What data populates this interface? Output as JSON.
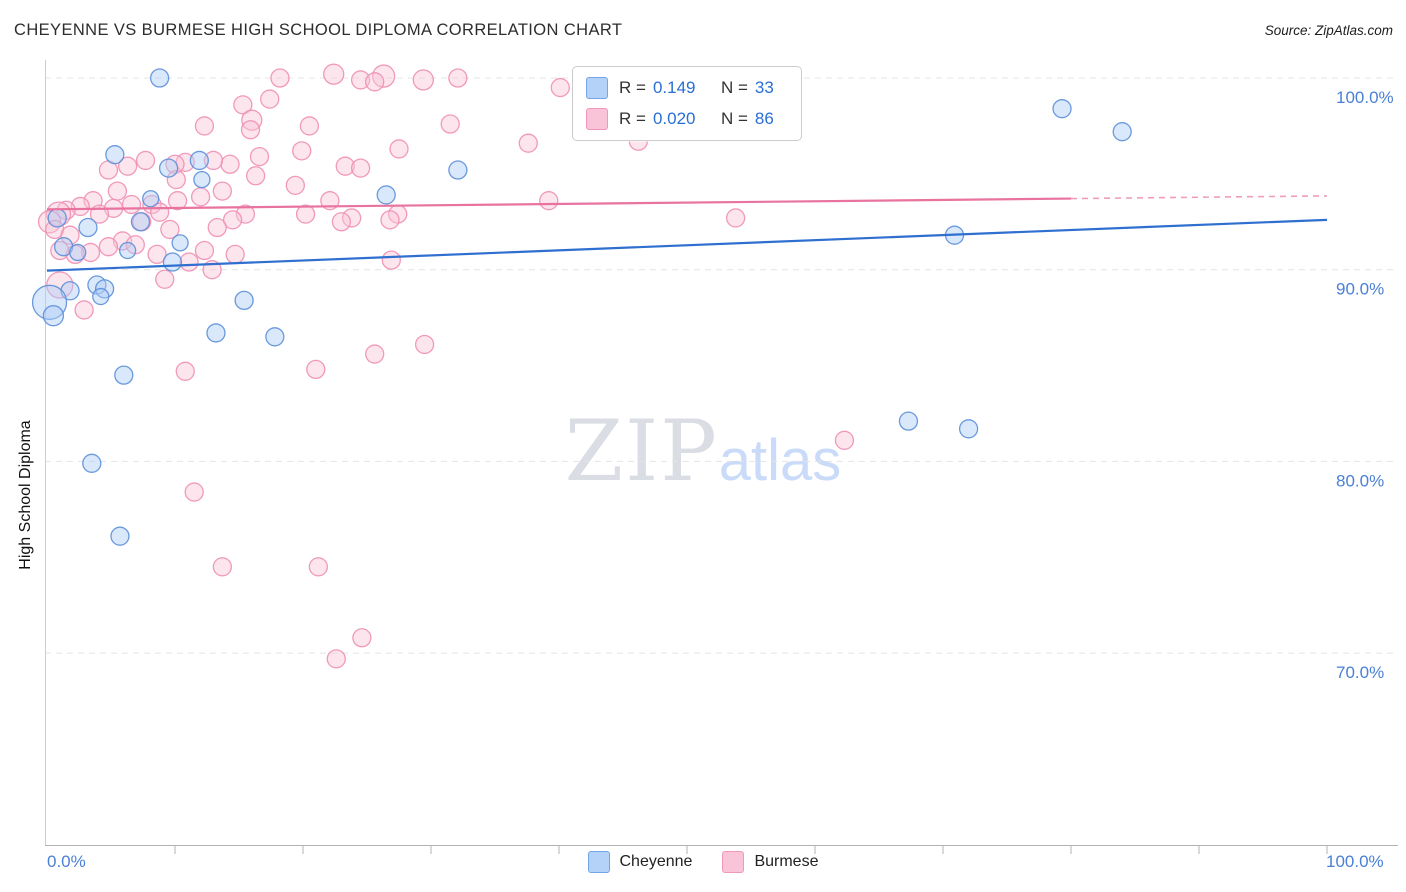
{
  "header": {
    "title": "CHEYENNE VS BURMESE HIGH SCHOOL DIPLOMA CORRELATION CHART",
    "source": "Source: ZipAtlas.com"
  },
  "axes": {
    "ylabel": "High School Diploma",
    "x_left_label": "0.0%",
    "x_right_label": "100.0%"
  },
  "legend_box": {
    "rows": [
      {
        "r_label": "R =",
        "r_value": "0.149",
        "n_label": "N =",
        "n_value": "33"
      },
      {
        "r_label": "R =",
        "r_value": "0.020",
        "n_label": "N =",
        "n_value": "86"
      }
    ]
  },
  "bottom_legend": {
    "items": [
      {
        "label": "Cheyenne"
      },
      {
        "label": "Burmese"
      }
    ]
  },
  "watermark": {
    "part1": "ZIP",
    "part2": "atlas"
  },
  "chart_data": {
    "type": "scatter",
    "title": "CHEYENNE VS BURMESE HIGH SCHOOL DIPLOMA CORRELATION CHART",
    "xlabel": "",
    "ylabel": "High School Diploma",
    "xlim": [
      0,
      100
    ],
    "ylim": [
      60,
      101.5
    ],
    "grid": "dashed-horizontal",
    "legend_position": "top-center",
    "yticks": [
      {
        "value": 100,
        "label": "100.0%"
      },
      {
        "value": 90,
        "label": "90.0%"
      },
      {
        "value": 80,
        "label": "80.0%"
      },
      {
        "value": 70,
        "label": "70.0%"
      }
    ],
    "series": [
      {
        "name": "Cheyenne",
        "R": 0.149,
        "N": 33,
        "fill": "#aecdf6",
        "edge": "#5b8fd9",
        "line": "#2f6fd0",
        "trend": {
          "x1": 0,
          "y1": 89.95,
          "x2": 100,
          "y2": 92.6,
          "solid_to": 100
        },
        "points": [
          [
            8.8,
            100.0,
            9
          ],
          [
            5.3,
            96.0,
            9
          ],
          [
            79.3,
            98.4,
            9
          ],
          [
            84.0,
            97.2,
            9
          ],
          [
            32.1,
            95.2,
            9
          ],
          [
            9.5,
            95.3,
            9
          ],
          [
            11.9,
            95.7,
            9
          ],
          [
            26.5,
            93.9,
            9
          ],
          [
            0.8,
            92.7,
            9
          ],
          [
            3.2,
            92.2,
            9
          ],
          [
            7.3,
            92.5,
            9
          ],
          [
            70.9,
            91.8,
            9
          ],
          [
            1.3,
            91.2,
            9
          ],
          [
            9.8,
            90.4,
            9
          ],
          [
            1.8,
            88.9,
            9
          ],
          [
            3.9,
            89.2,
            9
          ],
          [
            4.5,
            89.0,
            9
          ],
          [
            15.4,
            88.4,
            9
          ],
          [
            13.2,
            86.7,
            9
          ],
          [
            17.8,
            86.5,
            9
          ],
          [
            0.2,
            88.3,
            17
          ],
          [
            6.0,
            84.5,
            9
          ],
          [
            3.5,
            79.9,
            9
          ],
          [
            5.7,
            76.1,
            9
          ],
          [
            67.3,
            82.1,
            9
          ],
          [
            72.0,
            81.7,
            9
          ],
          [
            2.4,
            90.9,
            8
          ],
          [
            6.3,
            91.0,
            8
          ],
          [
            0.5,
            87.6,
            10
          ],
          [
            4.2,
            88.6,
            8
          ],
          [
            12.1,
            94.7,
            8
          ],
          [
            8.1,
            93.7,
            8
          ],
          [
            10.4,
            91.4,
            8
          ]
        ]
      },
      {
        "name": "Burmese",
        "R": 0.02,
        "N": 86,
        "fill": "#f9c6d8",
        "edge": "#ef8fb4",
        "line": "#e8739e",
        "trend": {
          "x1": 0,
          "y1": 93.15,
          "x2": 100,
          "y2": 93.85,
          "solid_to": 80
        },
        "points": [
          [
            18.2,
            100.0,
            9
          ],
          [
            22.4,
            100.2,
            10
          ],
          [
            24.5,
            99.9,
            9
          ],
          [
            26.3,
            100.1,
            11
          ],
          [
            25.6,
            99.8,
            9
          ],
          [
            29.4,
            99.9,
            10
          ],
          [
            32.1,
            100.0,
            9
          ],
          [
            40.1,
            99.5,
            9
          ],
          [
            15.3,
            98.6,
            9
          ],
          [
            17.4,
            98.9,
            9
          ],
          [
            16.0,
            97.8,
            10
          ],
          [
            12.3,
            97.5,
            9
          ],
          [
            20.5,
            97.5,
            9
          ],
          [
            31.5,
            97.6,
            9
          ],
          [
            46.2,
            96.7,
            9
          ],
          [
            37.6,
            96.6,
            9
          ],
          [
            27.5,
            96.3,
            9
          ],
          [
            19.9,
            96.2,
            9
          ],
          [
            16.6,
            95.9,
            9
          ],
          [
            14.3,
            95.5,
            9
          ],
          [
            10.8,
            95.6,
            9
          ],
          [
            7.7,
            95.7,
            9
          ],
          [
            6.3,
            95.4,
            9
          ],
          [
            4.8,
            95.2,
            9
          ],
          [
            10.0,
            95.5,
            9
          ],
          [
            23.3,
            95.4,
            9
          ],
          [
            24.5,
            95.3,
            9
          ],
          [
            16.3,
            94.9,
            9
          ],
          [
            13.7,
            94.1,
            9
          ],
          [
            12.0,
            93.8,
            9
          ],
          [
            10.2,
            93.6,
            9
          ],
          [
            8.2,
            93.4,
            9
          ],
          [
            6.6,
            93.4,
            9
          ],
          [
            5.2,
            93.2,
            9
          ],
          [
            3.6,
            93.6,
            9
          ],
          [
            2.6,
            93.3,
            9
          ],
          [
            1.5,
            93.1,
            9
          ],
          [
            0.9,
            92.9,
            12
          ],
          [
            23.8,
            92.7,
            9
          ],
          [
            23.0,
            92.5,
            9
          ],
          [
            27.4,
            92.9,
            9
          ],
          [
            26.8,
            92.6,
            9
          ],
          [
            15.5,
            92.9,
            9
          ],
          [
            14.5,
            92.6,
            9
          ],
          [
            13.3,
            92.2,
            9
          ],
          [
            9.6,
            92.1,
            9
          ],
          [
            39.2,
            93.6,
            9
          ],
          [
            53.8,
            92.7,
            9
          ],
          [
            5.9,
            91.5,
            9
          ],
          [
            6.9,
            91.3,
            9
          ],
          [
            4.8,
            91.2,
            9
          ],
          [
            3.4,
            90.9,
            9
          ],
          [
            2.2,
            90.8,
            9
          ],
          [
            1.0,
            91.0,
            9
          ],
          [
            8.6,
            90.8,
            9
          ],
          [
            11.1,
            90.4,
            9
          ],
          [
            12.9,
            90.0,
            9
          ],
          [
            26.9,
            90.5,
            9
          ],
          [
            9.2,
            89.5,
            9
          ],
          [
            1.0,
            89.2,
            13
          ],
          [
            2.9,
            87.9,
            9
          ],
          [
            10.8,
            84.7,
            9
          ],
          [
            21.0,
            84.8,
            9
          ],
          [
            25.6,
            85.6,
            9
          ],
          [
            29.5,
            86.1,
            9
          ],
          [
            62.3,
            81.1,
            9
          ],
          [
            11.5,
            78.4,
            9
          ],
          [
            13.7,
            74.5,
            9
          ],
          [
            21.2,
            74.5,
            9
          ],
          [
            24.6,
            70.8,
            9
          ],
          [
            22.6,
            69.7,
            9
          ],
          [
            15.9,
            97.3,
            9
          ],
          [
            13.0,
            95.7,
            9
          ],
          [
            19.4,
            94.4,
            9
          ],
          [
            5.5,
            94.1,
            9
          ],
          [
            4.1,
            92.9,
            9
          ],
          [
            7.4,
            92.5,
            9
          ],
          [
            0.2,
            92.5,
            11
          ],
          [
            0.6,
            92.1,
            9
          ],
          [
            1.8,
            91.8,
            9
          ],
          [
            12.3,
            91.0,
            9
          ],
          [
            14.7,
            90.8,
            9
          ],
          [
            8.8,
            93.0,
            9
          ],
          [
            10.1,
            94.7,
            9
          ],
          [
            20.2,
            92.9,
            9
          ],
          [
            22.1,
            93.6,
            9
          ]
        ]
      }
    ]
  }
}
